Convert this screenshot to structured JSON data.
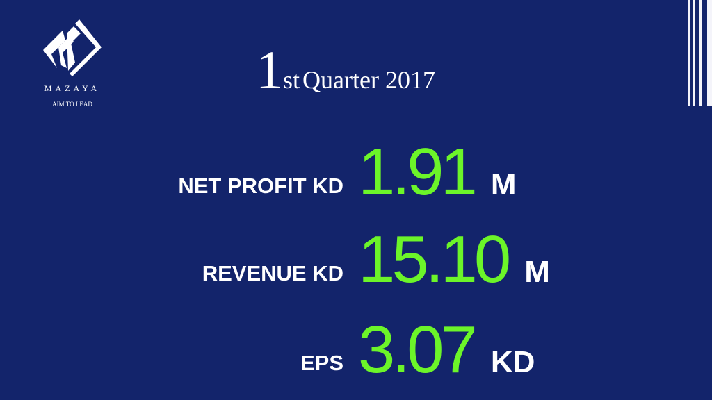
{
  "logo": {
    "name": "MAZAYA",
    "tagline": "AIM TO LEAD"
  },
  "title": {
    "number": "1",
    "suffix": "st",
    "text": "Quarter 2017"
  },
  "metrics": [
    {
      "label": "NET PROFIT KD",
      "value": "1.91",
      "unit": "M"
    },
    {
      "label": "REVENUE KD",
      "value": "15.10",
      "unit": "M"
    },
    {
      "label": "EPS",
      "value": "3.07",
      "unit": "KD"
    }
  ],
  "colors": {
    "background": "#13246b",
    "accent": "#6cf529",
    "text": "#ffffff"
  }
}
